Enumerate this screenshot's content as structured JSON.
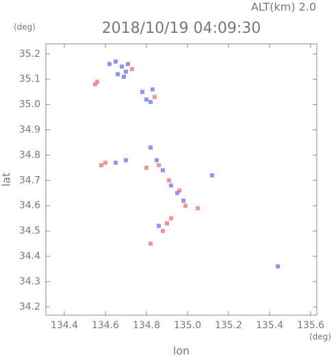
{
  "chart_data": {
    "type": "scatter",
    "title": "2018/10/19 04:09:30",
    "subtitle": "ALT(km) 2.0",
    "x_unit": "(deg)",
    "y_unit": "(deg)",
    "x_label": "lon",
    "y_label": "lat",
    "xlim": [
      134.31,
      135.63
    ],
    "ylim": [
      34.167,
      35.24
    ],
    "xticks": [
      134.4,
      134.6,
      134.8,
      {
        "value": 135,
        "label": "135.0"
      },
      135.2,
      135.4,
      135.6
    ],
    "yticks": [
      34.2,
      34.3,
      34.4,
      34.5,
      34.6,
      34.7,
      34.8,
      34.9,
      {
        "value": 35,
        "label": "35.0"
      },
      35.1,
      35.2
    ],
    "series": [
      {
        "color": "#f07878",
        "x": [
          134.55,
          134.56,
          134.73,
          134.84,
          134.6,
          134.58,
          134.8,
          134.86,
          134.91,
          134.96,
          134.99,
          134.9,
          134.88,
          134.92,
          134.82,
          135.05
        ],
        "y": [
          35.08,
          35.09,
          35.14,
          35.03,
          34.77,
          34.76,
          34.75,
          34.76,
          34.7,
          34.66,
          34.6,
          34.53,
          34.5,
          34.55,
          34.45,
          34.59
        ]
      },
      {
        "color": "#7878f0",
        "x": [
          134.65,
          134.68,
          134.7,
          134.66,
          134.71,
          134.69,
          134.62,
          134.78,
          134.8,
          134.83,
          134.82,
          134.65,
          134.7,
          134.82,
          134.85,
          134.88,
          134.95,
          134.98,
          134.92,
          134.86,
          135.44,
          135.12
        ],
        "y": [
          35.17,
          35.15,
          35.13,
          35.12,
          35.16,
          35.11,
          35.16,
          35.05,
          35.02,
          35.06,
          35.01,
          34.77,
          34.78,
          34.83,
          34.78,
          34.74,
          34.65,
          34.62,
          34.68,
          34.52,
          34.36,
          34.72
        ]
      }
    ]
  }
}
